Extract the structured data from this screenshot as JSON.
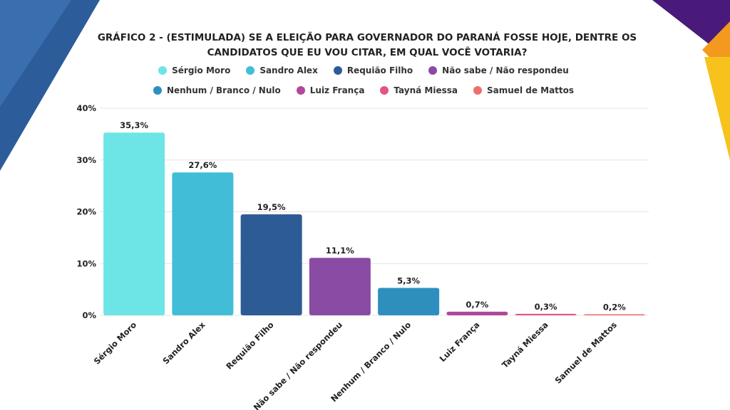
{
  "chart_data": {
    "type": "bar",
    "title": "GRÁFICO 2 -  (ESTIMULADA) SE A ELEIÇÃO PARA GOVERNADOR DO PARANÁ FOSSE HOJE, DENTRE OS CANDIDATOS QUE EU VOU CITAR, EM QUAL VOCÊ VOTARIA?",
    "categories": [
      "Sérgio Moro",
      "Sandro Alex",
      "Requião Filho",
      "Não sabe / Não respondeu",
      "Nenhum / Branco / Nulo",
      "Luiz França",
      "Tayná Miessa",
      "Samuel de Mattos"
    ],
    "values": [
      35.3,
      27.6,
      19.5,
      11.1,
      5.3,
      0.7,
      0.3,
      0.2
    ],
    "value_labels": [
      "35,3%",
      "27,6%",
      "19,5%",
      "11,1%",
      "5,3%",
      "0,7%",
      "0,3%",
      "0,2%"
    ],
    "colors": [
      "#6de5e6",
      "#42bdd7",
      "#2d5b96",
      "#8a4ba4",
      "#2e8fbe",
      "#b1489b",
      "#e5557f",
      "#ef6d6b"
    ],
    "ylim": [
      0,
      40
    ],
    "yticks": [
      {
        "value": 0,
        "label": "0%"
      },
      {
        "value": 10,
        "label": "10%"
      },
      {
        "value": 20,
        "label": "20%"
      },
      {
        "value": 30,
        "label": "30%"
      },
      {
        "value": 40,
        "label": "40%"
      }
    ],
    "grid": true
  }
}
